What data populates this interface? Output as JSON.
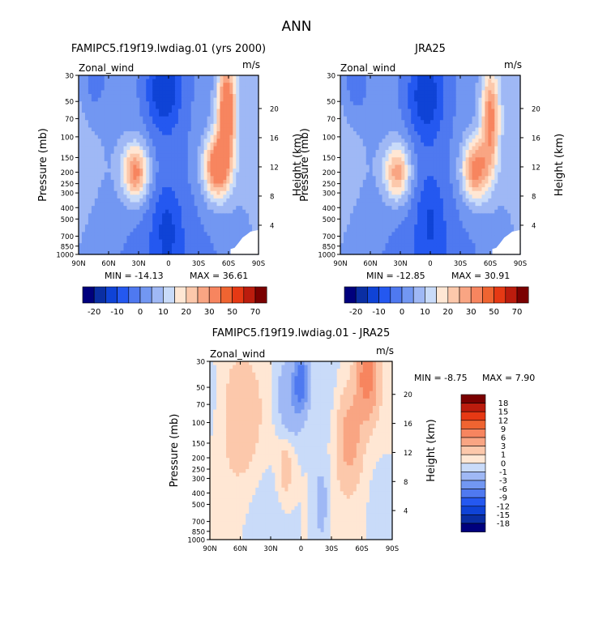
{
  "page_title": "ANN",
  "chart_data": [
    {
      "type": "heatmap",
      "panel": "top-left",
      "title": "FAMIPC5.f19f19.lwdiag.01 (yrs 2000)",
      "variable": "Zonal_wind",
      "units": "m/s",
      "ylabel": "Pressure (mb)",
      "y2label": "Height (km)",
      "x_ticks": [
        "90N",
        "60N",
        "30N",
        "0",
        "30S",
        "60S",
        "90S"
      ],
      "y_ticks": [
        "30",
        "50",
        "70",
        "100",
        "150",
        "200",
        "250",
        "300",
        "400",
        "500",
        "700",
        "850",
        "1000"
      ],
      "y2_ticks": [
        "20",
        "16",
        "12",
        "8",
        "4"
      ],
      "x_range": [
        90,
        -90
      ],
      "y_range_mb": [
        1000,
        30
      ],
      "min_label": "MIN = -14.13",
      "max_label": "MAX = 36.61",
      "min": -14.13,
      "max": 36.61,
      "features": [
        {
          "lat": 33,
          "p": 200,
          "value": 30,
          "width": 13,
          "depth": 0.55
        },
        {
          "lat": -48,
          "p": 180,
          "value": 34,
          "width": 13,
          "depth": 0.6
        },
        {
          "lat": -58,
          "p": 60,
          "value": 36,
          "width": 9,
          "depth": 1.0
        },
        {
          "lat": 5,
          "p": 40,
          "value": -14,
          "width": 17,
          "depth": 0.75
        },
        {
          "lat": 2,
          "p": 600,
          "value": -8,
          "width": 15,
          "depth": 0.8
        },
        {
          "lat": 75,
          "p": 35,
          "value": -8,
          "width": 15,
          "depth": 0.7
        }
      ]
    },
    {
      "type": "heatmap",
      "panel": "top-right",
      "title": "JRA25",
      "variable": "Zonal_wind",
      "units": "m/s",
      "ylabel": "Pressure (mb)",
      "y2label": "Height (km)",
      "x_ticks": [
        "90N",
        "60N",
        "30N",
        "0",
        "30S",
        "60S",
        "90S"
      ],
      "y_ticks": [
        "30",
        "50",
        "70",
        "100",
        "150",
        "200",
        "250",
        "300",
        "400",
        "500",
        "700",
        "850",
        "1000"
      ],
      "y2_ticks": [
        "20",
        "16",
        "12",
        "8",
        "4"
      ],
      "x_range": [
        90,
        -90
      ],
      "y_range_mb": [
        1000,
        30
      ],
      "min_label": "MIN = -12.85",
      "max_label": "MAX = 30.91",
      "min": -12.85,
      "max": 30.91,
      "features": [
        {
          "lat": 33,
          "p": 200,
          "value": 26,
          "width": 13,
          "depth": 0.55
        },
        {
          "lat": -45,
          "p": 190,
          "value": 30,
          "width": 13,
          "depth": 0.6
        },
        {
          "lat": -60,
          "p": 70,
          "value": 28,
          "width": 9,
          "depth": 1.0
        },
        {
          "lat": 5,
          "p": 45,
          "value": -13,
          "width": 18,
          "depth": 0.8
        },
        {
          "lat": 0,
          "p": 500,
          "value": -7,
          "width": 15,
          "depth": 0.9
        },
        {
          "lat": 75,
          "p": 35,
          "value": -9,
          "width": 15,
          "depth": 0.7
        }
      ]
    },
    {
      "type": "heatmap",
      "panel": "bottom",
      "title": "FAMIPC5.f19f19.lwdiag.01 - JRA25",
      "variable": "Zonal_wind",
      "units": "m/s",
      "ylabel": "Pressure (mb)",
      "y2label": "Height (km)",
      "x_ticks": [
        "90N",
        "60N",
        "30N",
        "0",
        "30S",
        "60S",
        "90S"
      ],
      "y_ticks": [
        "30",
        "50",
        "70",
        "100",
        "150",
        "200",
        "250",
        "300",
        "400",
        "500",
        "700",
        "850",
        "1000"
      ],
      "y2_ticks": [
        "20",
        "16",
        "12",
        "8",
        "4"
      ],
      "x_range": [
        90,
        -90
      ],
      "y_range_mb": [
        1000,
        30
      ],
      "min_label": "MIN =  -8.75",
      "max_label": "MAX =   7.90",
      "min": -8.75,
      "max": 7.9,
      "features": [
        {
          "lat": -65,
          "p": 40,
          "value": 8,
          "width": 10,
          "depth": 0.8
        },
        {
          "lat": -48,
          "p": 130,
          "value": 4.5,
          "width": 12,
          "depth": 0.9
        },
        {
          "lat": 0,
          "p": 45,
          "value": -8.5,
          "width": 6,
          "depth": 0.45
        },
        {
          "lat": 10,
          "p": 60,
          "value": -3,
          "width": 14,
          "depth": 0.8
        },
        {
          "lat": 60,
          "p": 90,
          "value": 2.5,
          "width": 18,
          "depth": 1.2
        },
        {
          "lat": 15,
          "p": 250,
          "value": 2,
          "width": 8,
          "depth": 0.6
        },
        {
          "lat": -20,
          "p": 500,
          "value": -2,
          "width": 8,
          "depth": 0.8
        }
      ]
    }
  ],
  "colorbar_top": {
    "labels": [
      "-20",
      "-10",
      "0",
      "10",
      "20",
      "30",
      "50",
      "70"
    ],
    "levels": [
      -20,
      -15,
      -10,
      -5,
      0,
      5,
      10,
      15,
      20,
      25,
      30,
      40,
      50,
      60,
      70
    ],
    "colors": [
      "#00007d",
      "#0a2ea3",
      "#0f43d6",
      "#2458f0",
      "#4f79f0",
      "#7297f2",
      "#9fb8f5",
      "#c9dbf9",
      "#ffe7d4",
      "#fcc8ab",
      "#f9a583",
      "#f7855f",
      "#ef6431",
      "#e63914",
      "#bb1c0d",
      "#7a0000"
    ]
  },
  "colorbar_diff": {
    "labels": [
      "18",
      "15",
      "12",
      "9",
      "6",
      "3",
      "1",
      "0",
      "-1",
      "-3",
      "-6",
      "-9",
      "-12",
      "-15",
      "-18"
    ],
    "levels": [
      -18,
      -15,
      -12,
      -9,
      -6,
      -3,
      -1,
      0,
      1,
      3,
      6,
      9,
      12,
      15,
      18
    ],
    "colors": [
      "#00007d",
      "#0a2ea3",
      "#0f43d6",
      "#2458f0",
      "#4f79f0",
      "#7297f2",
      "#9fb8f5",
      "#c9dbf9",
      "#ffe7d4",
      "#fcc8ab",
      "#f9a583",
      "#f7855f",
      "#ef6431",
      "#e63914",
      "#bb1c0d",
      "#7a0000"
    ]
  }
}
